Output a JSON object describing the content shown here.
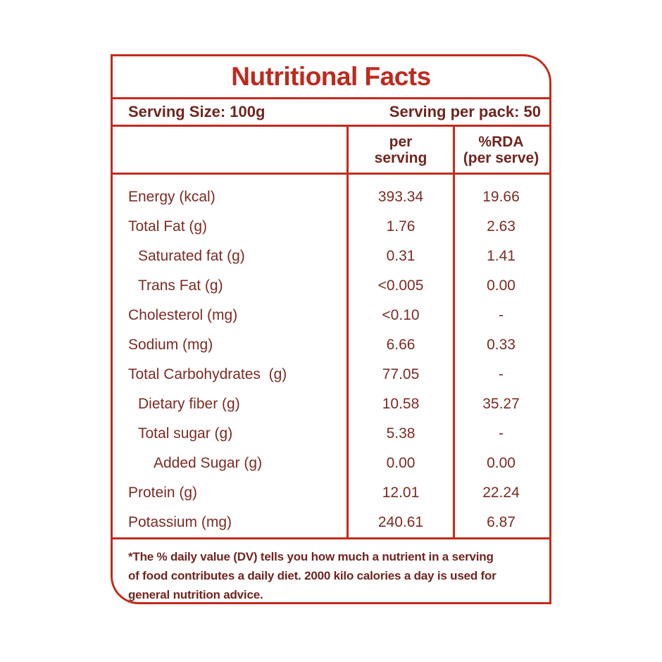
{
  "title": "Nutritional Facts",
  "serving_info": {
    "size": "Serving Size: 100g",
    "per_pack": "Serving per pack: 50"
  },
  "table": {
    "header": {
      "per_serving": [
        "per",
        "serving"
      ],
      "rda": [
        "%RDA",
        "(per serve)"
      ]
    },
    "rows": [
      {
        "name": "Energy (kcal)",
        "indent": 0,
        "per_serving": "393.34",
        "rda": "19.66"
      },
      {
        "name": "Total Fat (g)",
        "indent": 0,
        "per_serving": "1.76",
        "rda": "2.63"
      },
      {
        "name": "Saturated fat (g)",
        "indent": 1,
        "per_serving": "0.31",
        "rda": "1.41"
      },
      {
        "name": "Trans Fat (g)",
        "indent": 1,
        "per_serving": "<0.005",
        "rda": "0.00"
      },
      {
        "name": "Cholesterol (mg)",
        "indent": 0,
        "per_serving": "<0.10",
        "rda": "-"
      },
      {
        "name": "Sodium (mg)",
        "indent": 0,
        "per_serving": "6.66",
        "rda": "0.33"
      },
      {
        "name": "Total Carbohydrates  (g)",
        "indent": 0,
        "per_serving": "77.05",
        "rda": "-"
      },
      {
        "name": "Dietary fiber (g)",
        "indent": 1,
        "per_serving": "10.58",
        "rda": "35.27"
      },
      {
        "name": "Total sugar (g)",
        "indent": 1,
        "per_serving": "5.38",
        "rda": "-"
      },
      {
        "name": "Added Sugar (g)",
        "indent": 2,
        "per_serving": "0.00",
        "rda": "0.00"
      },
      {
        "name": "Protein (g)",
        "indent": 0,
        "per_serving": "12.01",
        "rda": "22.24"
      },
      {
        "name": "Potassium (mg)",
        "indent": 0,
        "per_serving": "240.61",
        "rda": "6.87"
      }
    ]
  },
  "footnote": {
    "lines": [
      "*The % daily value (DV) tells you how much a nutrient in a serving",
      "of food contributes a daily diet. 2000 kilo calories a day is used for",
      "general nutrition advice."
    ]
  },
  "colors": {
    "border_red": "#c32b1d",
    "title_red": "#bd2a1e",
    "text_maroon": "#7d2b24",
    "bold_maroon": "#702520",
    "background": "#ffffff"
  }
}
